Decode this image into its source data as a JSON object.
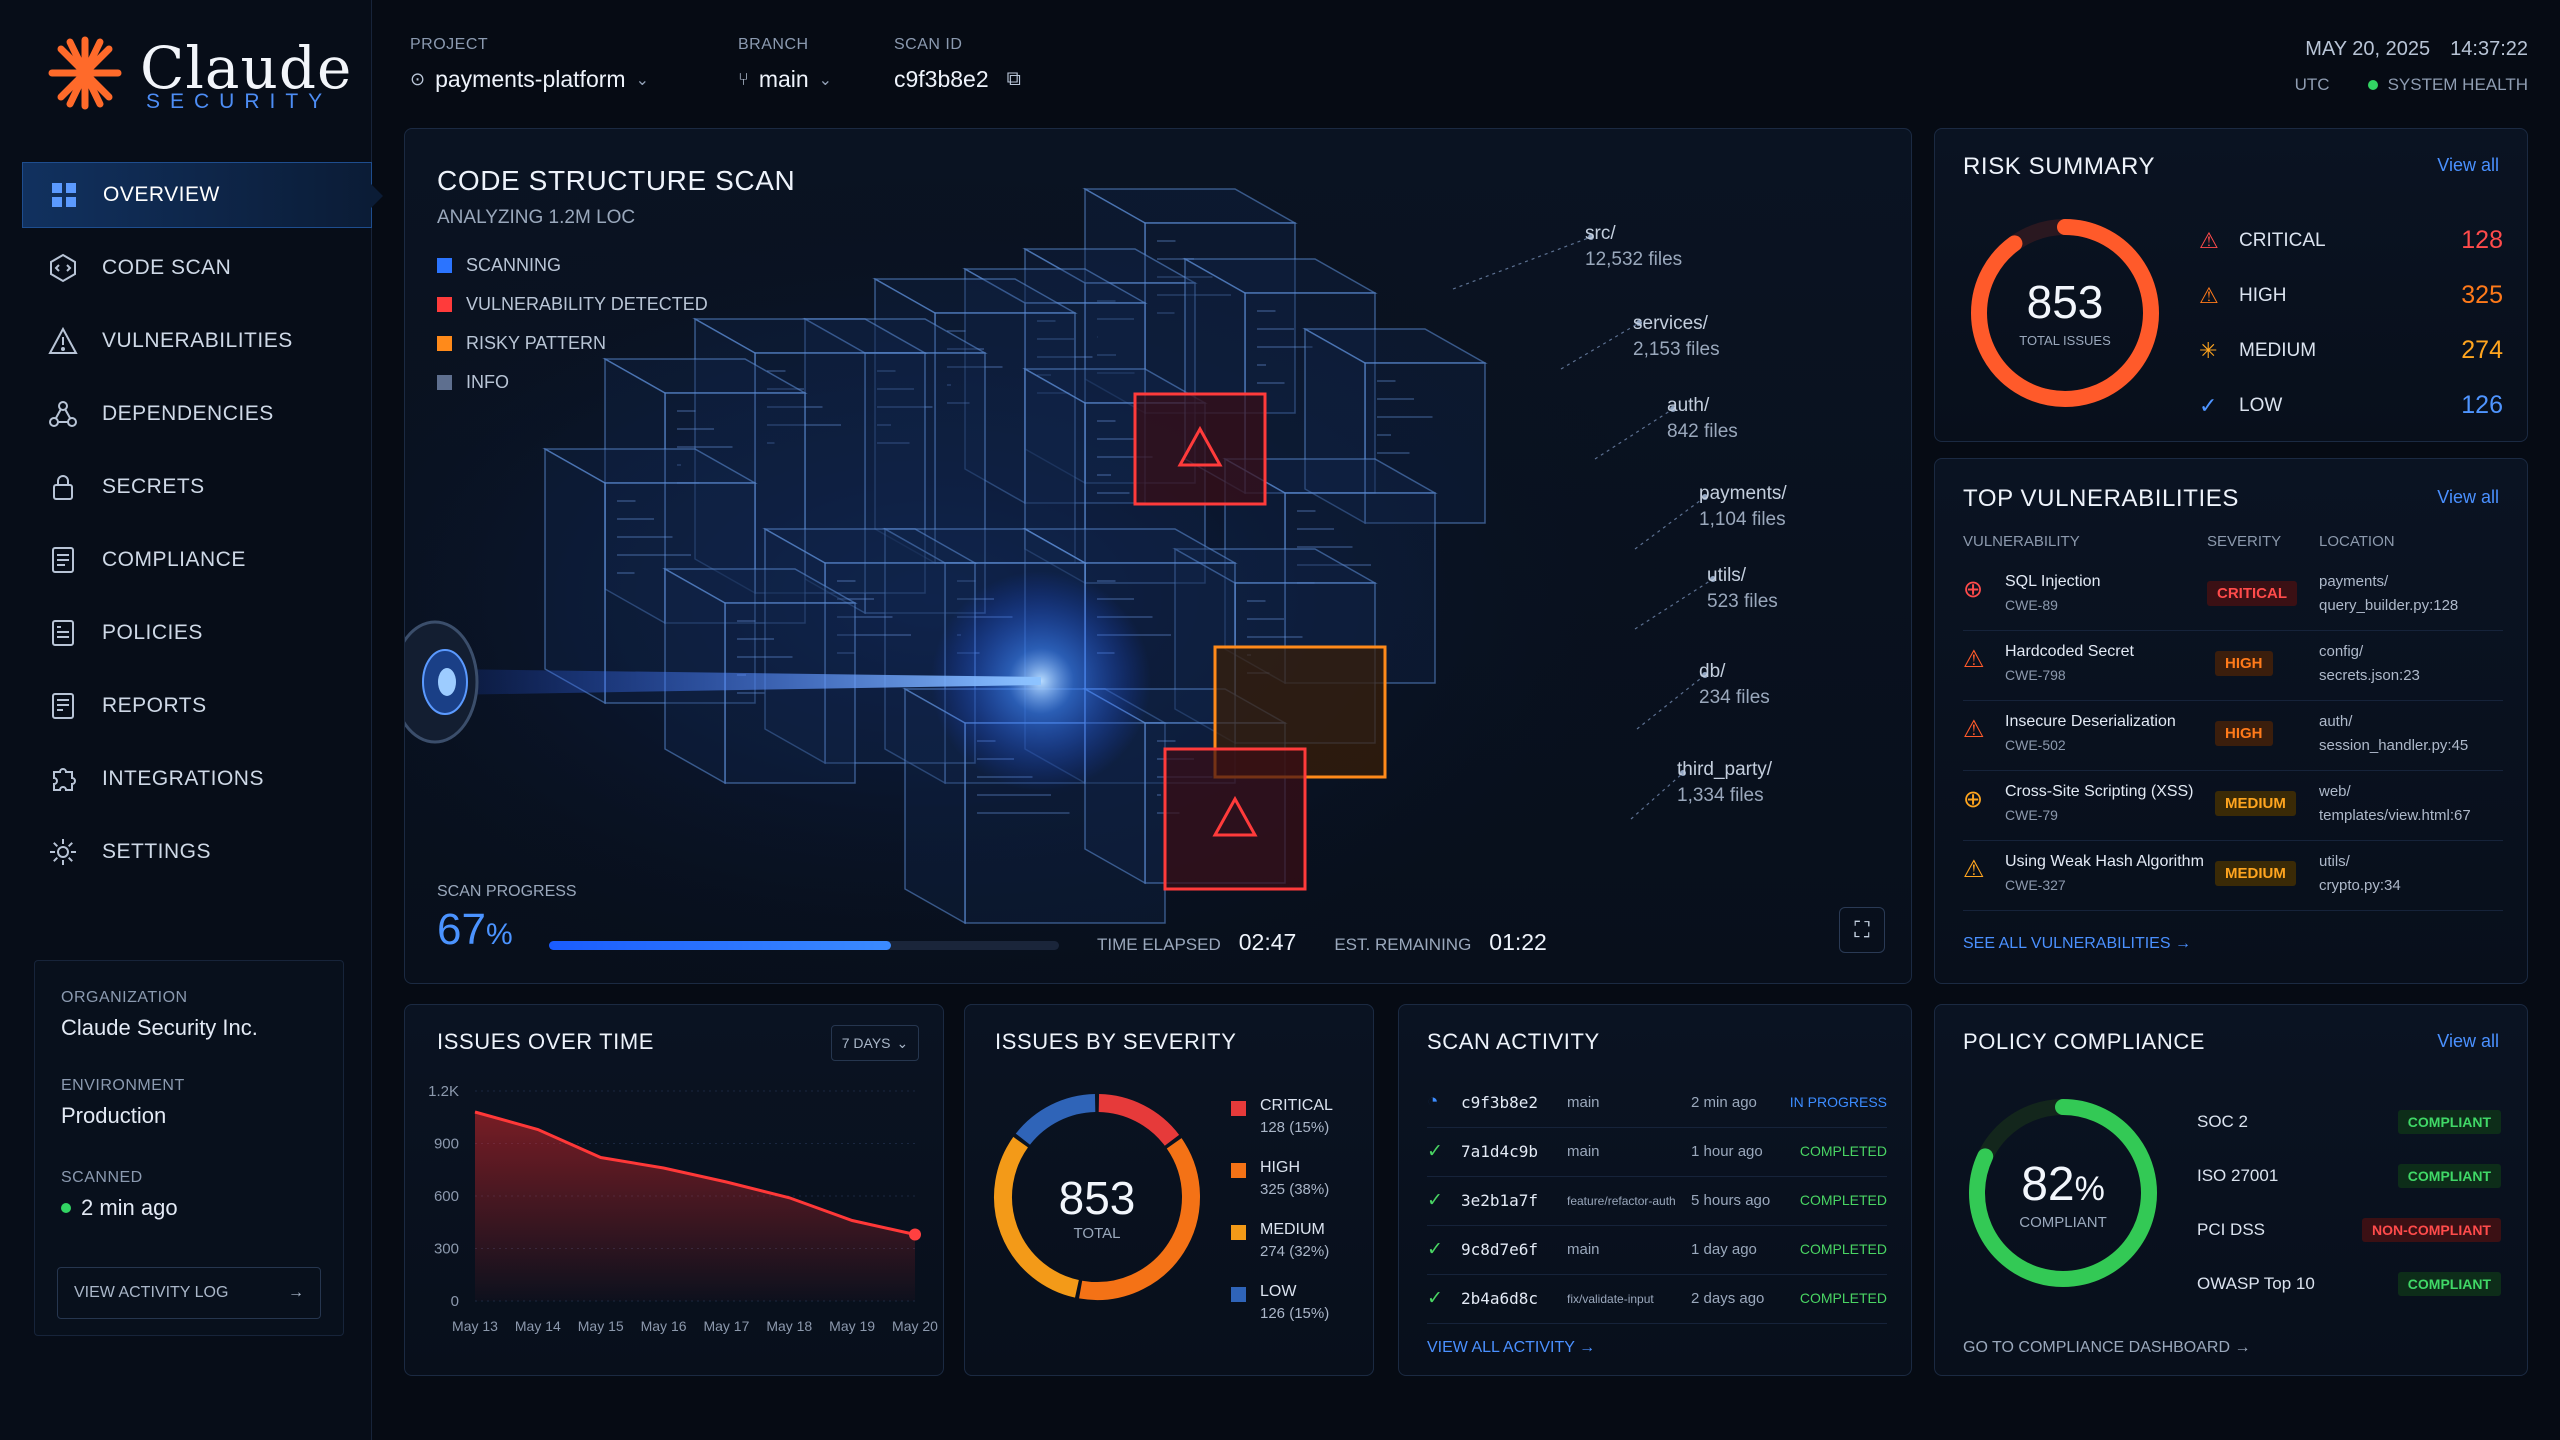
{
  "brand": {
    "name": "Claude",
    "sub": "SECURITY"
  },
  "sidebar": {
    "items": [
      {
        "label": "OVERVIEW",
        "icon": "grid-icon",
        "active": true
      },
      {
        "label": "CODE SCAN",
        "icon": "code-scan-icon"
      },
      {
        "label": "VULNERABILITIES",
        "icon": "warning-icon"
      },
      {
        "label": "DEPENDENCIES",
        "icon": "dependencies-icon"
      },
      {
        "label": "SECRETS",
        "icon": "lock-icon"
      },
      {
        "label": "COMPLIANCE",
        "icon": "checklist-icon"
      },
      {
        "label": "POLICIES",
        "icon": "policy-icon"
      },
      {
        "label": "REPORTS",
        "icon": "report-icon"
      },
      {
        "label": "INTEGRATIONS",
        "icon": "puzzle-icon"
      },
      {
        "label": "SETTINGS",
        "icon": "gear-icon"
      }
    ],
    "org_label": "ORGANIZATION",
    "org_value": "Claude Security Inc.",
    "env_label": "ENVIRONMENT",
    "env_value": "Production",
    "scan_label": "SCANNED",
    "scan_value": "2 min ago",
    "activity_button": "VIEW ACTIVITY LOG"
  },
  "header": {
    "project_label": "PROJECT",
    "project_value": "payments-platform",
    "branch_label": "BRANCH",
    "branch_value": "main",
    "scan_label": "SCAN ID",
    "scan_value": "c9f3b8e2",
    "date": "MAY 20, 2025",
    "time": "14:37:22",
    "tz": "UTC",
    "health": "SYSTEM HEALTH"
  },
  "scan": {
    "title": "CODE STRUCTURE SCAN",
    "subtitle": "ANALYZING 1.2M LOC",
    "legend": [
      {
        "label": "SCANNING",
        "color": "#2b74ff"
      },
      {
        "label": "VULNERABILITY DETECTED",
        "color": "#ff3b3b"
      },
      {
        "label": "RISKY PATTERN",
        "color": "#ff8a1a"
      },
      {
        "label": "INFO",
        "color": "#5e6f8f"
      }
    ],
    "dirs": [
      {
        "name": "src/",
        "files": "12,532 files"
      },
      {
        "name": "services/",
        "files": "2,153 files"
      },
      {
        "name": "auth/",
        "files": "842 files"
      },
      {
        "name": "payments/",
        "files": "1,104 files"
      },
      {
        "name": "utils/",
        "files": "523 files"
      },
      {
        "name": "db/",
        "files": "234 files"
      },
      {
        "name": "third_party/",
        "files": "1,334 files"
      }
    ],
    "progress_label": "SCAN PROGRESS",
    "progress_value": "67",
    "progress_unit": "%",
    "progress_fraction": 0.67,
    "elapsed_label": "TIME ELAPSED",
    "elapsed": "02:47",
    "remaining_label": "EST. REMAINING",
    "remaining": "01:22"
  },
  "risk": {
    "title": "RISK SUMMARY",
    "view_all": "View all",
    "total": "853",
    "total_label": "TOTAL ISSUES",
    "items": [
      {
        "label": "CRITICAL",
        "value": "128",
        "color": "#ff4b4b"
      },
      {
        "label": "HIGH",
        "value": "325",
        "color": "#ff7a1a"
      },
      {
        "label": "MEDIUM",
        "value": "274",
        "color": "#ffa51f"
      },
      {
        "label": "LOW",
        "value": "126",
        "color": "#4f95ff"
      }
    ]
  },
  "topvuln": {
    "title": "TOP VULNERABILITIES",
    "view_all": "View all",
    "col_vuln": "VULNERABILITY",
    "col_sev": "SEVERITY",
    "col_loc": "LOCATION",
    "rows": [
      {
        "name": "SQL Injection",
        "cwe": "CWE-89",
        "sev": "CRITICAL",
        "cls": "crit",
        "loc1": "payments/",
        "loc2": "query_builder.py:128",
        "color": "#ff4b4b"
      },
      {
        "name": "Hardcoded Secret",
        "cwe": "CWE-798",
        "sev": "HIGH",
        "cls": "high",
        "loc1": "config/",
        "loc2": "secrets.json:23",
        "color": "#ff5a2a"
      },
      {
        "name": "Insecure Deserialization",
        "cwe": "CWE-502",
        "sev": "HIGH",
        "cls": "high",
        "loc1": "auth/",
        "loc2": "session_handler.py:45",
        "color": "#ff5a2a"
      },
      {
        "name": "Cross-Site Scripting (XSS)",
        "cwe": "CWE-79",
        "sev": "MEDIUM",
        "cls": "med",
        "loc1": "web/",
        "loc2": "templates/view.html:67",
        "color": "#ffa51f"
      },
      {
        "name": "Using Weak Hash Algorithm",
        "cwe": "CWE-327",
        "sev": "MEDIUM",
        "cls": "med",
        "loc1": "utils/",
        "loc2": "crypto.py:34",
        "color": "#ffa51f"
      }
    ],
    "see_all": "SEE ALL VULNERABILITIES"
  },
  "issues_time": {
    "title": "ISSUES OVER TIME",
    "range": "7 DAYS",
    "chart_data": {
      "type": "area",
      "x": [
        "May 13",
        "May 14",
        "May 15",
        "May 16",
        "May 17",
        "May 18",
        "May 19",
        "May 20"
      ],
      "values": [
        1080,
        980,
        820,
        760,
        680,
        590,
        460,
        380
      ],
      "yticks": [
        "1.2K",
        "900",
        "600",
        "300",
        "0"
      ],
      "ylim": [
        0,
        1200
      ]
    }
  },
  "severity": {
    "title": "ISSUES BY SEVERITY",
    "total": "853",
    "total_label": "TOTAL",
    "items": [
      {
        "label": "CRITICAL",
        "detail": "128 (15%)",
        "value": 128,
        "color": "#e63a3a"
      },
      {
        "label": "HIGH",
        "detail": "325 (38%)",
        "value": 325,
        "color": "#f47216"
      },
      {
        "label": "MEDIUM",
        "detail": "274 (32%)",
        "value": 274,
        "color": "#f39a18"
      },
      {
        "label": "LOW",
        "detail": "126 (15%)",
        "value": 126,
        "color": "#2f64b8"
      }
    ]
  },
  "activity": {
    "title": "SCAN ACTIVITY",
    "rows": [
      {
        "id": "c9f3b8e2",
        "branch": "main",
        "time": "2 min ago",
        "status": "IN PROGRESS",
        "color": "#3c8cff"
      },
      {
        "id": "7a1d4c9b",
        "branch": "main",
        "time": "1 hour ago",
        "status": "COMPLETED",
        "color": "#49d463"
      },
      {
        "id": "3e2b1a7f",
        "branch": "feature/refactor-auth",
        "time": "5 hours ago",
        "status": "COMPLETED",
        "color": "#49d463"
      },
      {
        "id": "9c8d7e6f",
        "branch": "main",
        "time": "1 day ago",
        "status": "COMPLETED",
        "color": "#49d463"
      },
      {
        "id": "2b4a6d8c",
        "branch": "fix/validate-input",
        "time": "2 days ago",
        "status": "COMPLETED",
        "color": "#49d463"
      }
    ],
    "view_all": "VIEW ALL ACTIVITY"
  },
  "policy": {
    "title": "POLICY COMPLIANCE",
    "view_all": "View all",
    "value": "82",
    "unit": "%",
    "label": "COMPLIANT",
    "fraction": 0.82,
    "rows": [
      {
        "name": "SOC 2",
        "status": "COMPLIANT",
        "cls": "comp"
      },
      {
        "name": "ISO 27001",
        "status": "COMPLIANT",
        "cls": "comp"
      },
      {
        "name": "PCI DSS",
        "status": "NON-COMPLIANT",
        "cls": "noncomp"
      },
      {
        "name": "OWASP Top 10",
        "status": "COMPLIANT",
        "cls": "comp"
      }
    ],
    "footer": "GO TO COMPLIANCE DASHBOARD"
  }
}
